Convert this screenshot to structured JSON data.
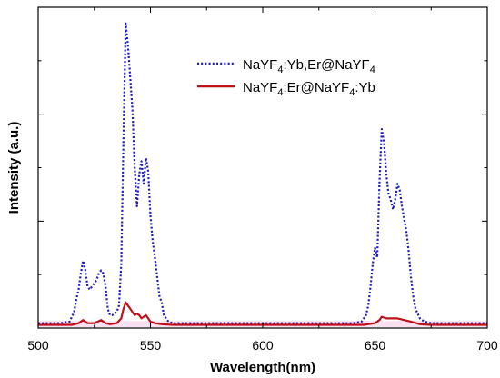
{
  "chart_data": {
    "type": "line",
    "title": "",
    "xlabel": "Wavelength(nm)",
    "ylabel": "Intensity (a.u.)",
    "xlim": [
      500,
      700
    ],
    "ylim": [
      0,
      100
    ],
    "xticks": [
      500,
      550,
      600,
      650,
      700
    ],
    "y_tick_labels": "none",
    "grid": false,
    "legend_position": "top-right",
    "series": [
      {
        "name": "NaYF4:Yb,Er@NaYF4",
        "legend_parts": [
          {
            "t": "NaYF",
            "sub": false
          },
          {
            "t": "4",
            "sub": true
          },
          {
            "t": ":Yb,Er@NaYF",
            "sub": false
          },
          {
            "t": "4",
            "sub": true
          }
        ],
        "color": "#1a1ab8",
        "style": "dotted",
        "x": [
          500,
          510,
          514,
          516,
          517,
          518,
          519,
          520,
          521,
          522,
          523,
          524,
          525,
          526,
          527,
          528,
          529,
          530,
          531,
          532,
          533,
          534,
          535,
          536,
          537,
          538,
          539,
          540,
          541,
          542,
          543,
          544,
          545,
          546,
          547,
          548,
          549,
          550,
          551,
          552,
          553,
          554,
          555,
          556,
          558,
          560,
          565,
          600,
          640,
          644,
          646,
          647,
          648,
          649,
          650,
          651,
          652,
          653,
          654,
          655,
          656,
          657,
          658,
          659,
          660,
          661,
          662,
          663,
          664,
          665,
          666,
          667,
          668,
          670,
          672,
          675,
          680,
          700
        ],
        "values": [
          1.5,
          1.5,
          2,
          5,
          9,
          12,
          17,
          21,
          18,
          13,
          12,
          13,
          14,
          15,
          17,
          18,
          17,
          13,
          6,
          4,
          4,
          4.5,
          5,
          7,
          20,
          60,
          95,
          88,
          78,
          68,
          50,
          38,
          48,
          52,
          45,
          53,
          49,
          35,
          27,
          22,
          16,
          10,
          8,
          4,
          2,
          1.5,
          1.5,
          1.5,
          1.5,
          2,
          4,
          7,
          13,
          20,
          25,
          22,
          45,
          62,
          58,
          48,
          42,
          40,
          37,
          40,
          45,
          43,
          38,
          34,
          30,
          24,
          16,
          10,
          6,
          3,
          2,
          1.5,
          1.5,
          1.5
        ]
      },
      {
        "name": "NaYF4:Er@NaYF4:Yb",
        "legend_parts": [
          {
            "t": "NaYF",
            "sub": false
          },
          {
            "t": "4",
            "sub": true
          },
          {
            "t": ":Er@NaYF",
            "sub": false
          },
          {
            "t": "4",
            "sub": true
          },
          {
            "t": ":Yb",
            "sub": false
          }
        ],
        "color": "#c0101a",
        "style": "solid",
        "x": [
          500,
          515,
          518,
          520,
          522,
          525,
          528,
          530,
          532,
          535,
          537,
          538,
          539,
          540,
          541,
          542,
          543,
          544,
          545,
          546,
          547,
          548,
          549,
          550,
          552,
          555,
          560,
          600,
          645,
          650,
          652,
          653,
          655,
          657,
          660,
          663,
          666,
          670,
          675,
          700
        ],
        "values": [
          1.0,
          1.0,
          1.5,
          2.5,
          1.5,
          1.5,
          2.5,
          1.5,
          1.2,
          1.5,
          3,
          6,
          8,
          7,
          6,
          5,
          4,
          4.5,
          4,
          3,
          3.5,
          4,
          3,
          2,
          1.5,
          1.2,
          1.0,
          1.0,
          1.0,
          1.5,
          2.5,
          3.5,
          3,
          3,
          3,
          2.5,
          2,
          1.2,
          1.0,
          1.0
        ]
      }
    ]
  }
}
